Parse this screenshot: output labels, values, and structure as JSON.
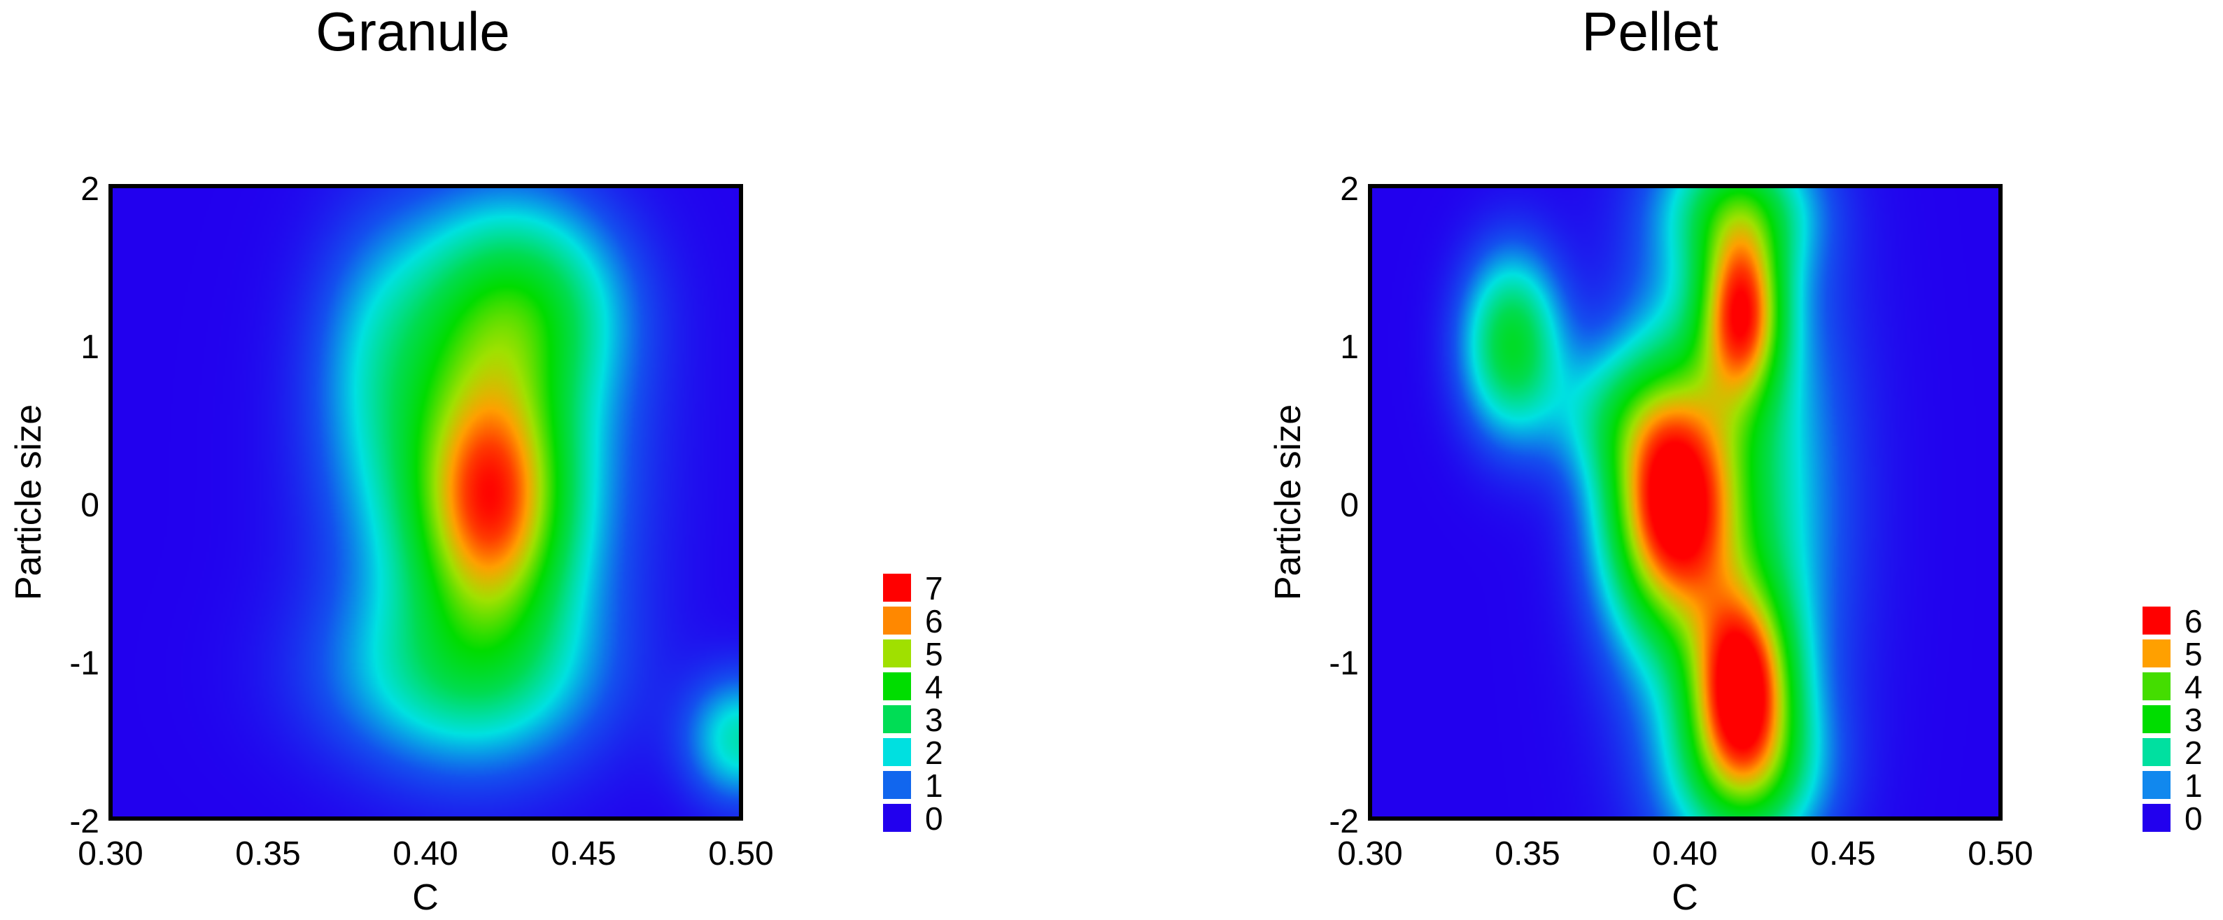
{
  "chart_data": [
    {
      "type": "heatmap",
      "title": "Granule",
      "xlabel": "C",
      "ylabel": "Particle size",
      "xlim": [
        0.3,
        0.5
      ],
      "ylim": [
        -2,
        2
      ],
      "x_ticks": [
        "0.30",
        "0.35",
        "0.40",
        "0.45",
        "0.50"
      ],
      "y_ticks": [
        "2",
        "1",
        "0",
        "-1",
        "-2"
      ],
      "value_range": [
        0,
        7.5
      ],
      "legend": [
        {
          "label": "7",
          "color": "#ff0000"
        },
        {
          "label": "6",
          "color": "#ff8800"
        },
        {
          "label": "5",
          "color": "#a0e000"
        },
        {
          "label": "4",
          "color": "#00dd00"
        },
        {
          "label": "3",
          "color": "#00dd55"
        },
        {
          "label": "2",
          "color": "#00e0e0"
        },
        {
          "label": "1",
          "color": "#1166ee"
        },
        {
          "label": "0",
          "color": "#2200ee"
        }
      ],
      "density_peaks": [
        {
          "x": 0.421,
          "y": 0.0,
          "height": 4.2,
          "sx": 0.016,
          "sy": 0.55
        },
        {
          "x": 0.418,
          "y": 0.2,
          "height": 3.2,
          "sx": 0.028,
          "sy": 0.95
        },
        {
          "x": 0.43,
          "y": 1.25,
          "height": 2.6,
          "sx": 0.022,
          "sy": 0.45
        },
        {
          "x": 0.41,
          "y": -1.1,
          "height": 1.8,
          "sx": 0.03,
          "sy": 0.4
        },
        {
          "x": 0.5,
          "y": -1.5,
          "height": 2.3,
          "sx": 0.012,
          "sy": 0.28
        },
        {
          "x": 0.385,
          "y": 0.9,
          "height": 1.0,
          "sx": 0.015,
          "sy": 0.6
        }
      ]
    },
    {
      "type": "heatmap",
      "title": "Pellet",
      "xlabel": "C",
      "ylabel": "Particle size",
      "xlim": [
        0.3,
        0.5
      ],
      "ylim": [
        -2,
        2
      ],
      "x_ticks": [
        "0.30",
        "0.35",
        "0.40",
        "0.45",
        "0.50"
      ],
      "y_ticks": [
        "2",
        "1",
        "0",
        "-1",
        "-2"
      ],
      "value_range": [
        0,
        6.5
      ],
      "legend": [
        {
          "label": "6",
          "color": "#ff0000"
        },
        {
          "label": "5",
          "color": "#ffa000"
        },
        {
          "label": "4",
          "color": "#44dd00"
        },
        {
          "label": "3",
          "color": "#00dd00"
        },
        {
          "label": "2",
          "color": "#00e0a0"
        },
        {
          "label": "1",
          "color": "#1188ee"
        },
        {
          "label": "0",
          "color": "#2200ee"
        }
      ],
      "density_peaks": [
        {
          "x": 0.395,
          "y": 0.0,
          "height": 5.6,
          "sx": 0.014,
          "sy": 0.55
        },
        {
          "x": 0.418,
          "y": 1.2,
          "height": 4.6,
          "sx": 0.009,
          "sy": 0.38
        },
        {
          "x": 0.418,
          "y": -1.15,
          "height": 5.0,
          "sx": 0.011,
          "sy": 0.42
        },
        {
          "x": 0.415,
          "y": 0.0,
          "height": 2.6,
          "sx": 0.022,
          "sy": 1.35
        },
        {
          "x": 0.417,
          "y": 1.85,
          "height": 2.2,
          "sx": 0.016,
          "sy": 0.3
        },
        {
          "x": 0.345,
          "y": 1.0,
          "height": 3.1,
          "sx": 0.011,
          "sy": 0.4
        },
        {
          "x": 0.42,
          "y": -1.7,
          "height": 2.2,
          "sx": 0.016,
          "sy": 0.35
        },
        {
          "x": 0.375,
          "y": 0.55,
          "height": 1.2,
          "sx": 0.014,
          "sy": 0.3
        }
      ]
    }
  ]
}
